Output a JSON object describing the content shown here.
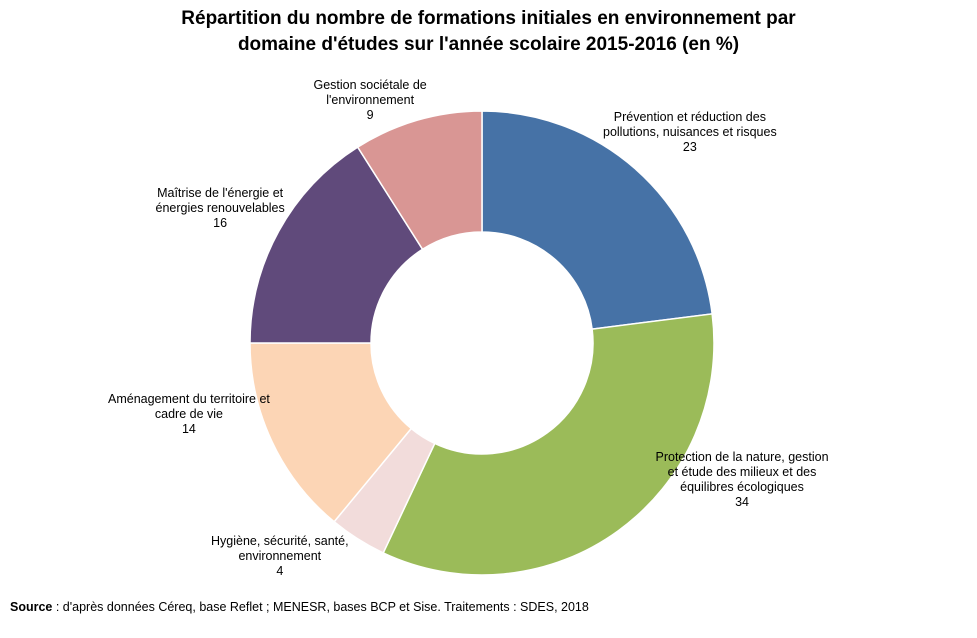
{
  "chart_data": {
    "type": "pie",
    "title_line1": "Répartition du nombre de formations initiales en environnement par",
    "title_line2": "domaine d'études sur l'année scolaire 2015-2016 (en %)",
    "donut": true,
    "slices": [
      {
        "name_lines": [
          "Prévention et réduction des",
          "pollutions, nuisances et risques"
        ],
        "value": 23,
        "color": "#4672A6"
      },
      {
        "name_lines": [
          "Protection de la nature, gestion",
          "et étude des milieux et des",
          "équilibres écologiques"
        ],
        "value": 34,
        "color": "#9BBB59"
      },
      {
        "name_lines": [
          "Hygiène, sécurité, santé,",
          "environnement"
        ],
        "value": 4,
        "color": "#F2DCDB"
      },
      {
        "name_lines": [
          "Aménagement du territoire et",
          "cadre de vie"
        ],
        "value": 14,
        "color": "#FCD5B5"
      },
      {
        "name_lines": [
          "Maîtrise de l'énergie et",
          "énergies renouvelables"
        ],
        "value": 16,
        "color": "#604A7B"
      },
      {
        "name_lines": [
          "Gestion sociétale de",
          "l'environnement"
        ],
        "value": 9,
        "color": "#D99694"
      }
    ]
  },
  "source": {
    "label": "Source",
    "text": " : d'après données Céreq, base Reflet ; MENESR, bases BCP et Sise. Traitements : SDES, 2018"
  }
}
